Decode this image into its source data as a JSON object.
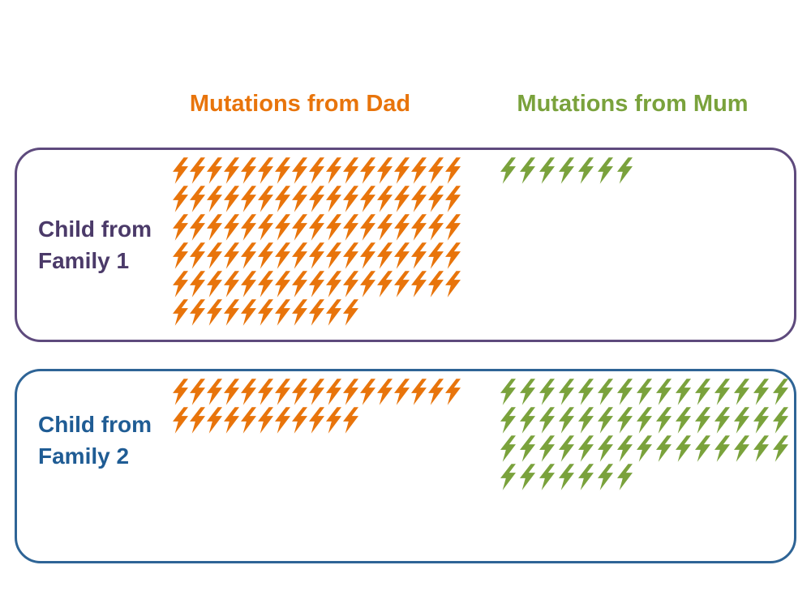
{
  "colors": {
    "dad": "#E8740B",
    "mum": "#7AA23C",
    "family1_border": "#5E4A7D",
    "family1_text": "#4B3A69",
    "family2_border": "#2E6496",
    "family2_text": "#1F5C94",
    "background": "#FFFFFF"
  },
  "headers": {
    "dad": {
      "label": "Mutations from Dad"
    },
    "mum": {
      "label": "Mutations from Mum"
    }
  },
  "families": [
    {
      "label": "Child from Family 1",
      "label_line1": "Child from",
      "label_line2": "Family 1",
      "dad_count": 96,
      "mum_count": 7
    },
    {
      "label": "Child from Family 2",
      "label_line1": "Child from",
      "label_line2": "Family 2",
      "dad_count": 28,
      "mum_count": 52
    }
  ],
  "chart_data": {
    "type": "bar",
    "variant": "pictogram",
    "icon": "lightning-bolt",
    "title": "",
    "categories": [
      "Child from Family 1",
      "Child from Family 2"
    ],
    "series": [
      {
        "name": "Mutations from Dad",
        "color": "#E8740B",
        "values": [
          96,
          28
        ]
      },
      {
        "name": "Mutations from Mum",
        "color": "#7AA23C",
        "values": [
          7,
          52
        ]
      }
    ],
    "legend_position": "top"
  }
}
